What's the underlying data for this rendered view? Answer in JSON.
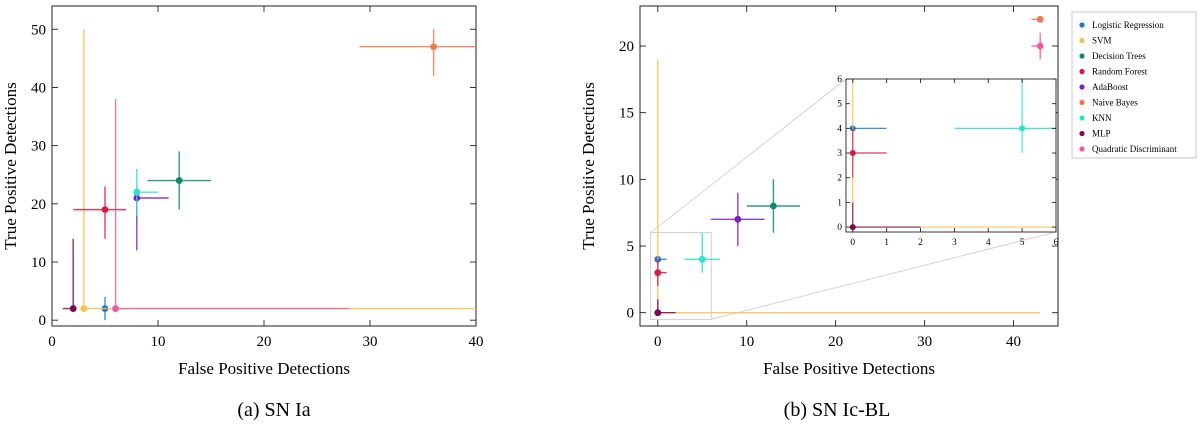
{
  "colors": {
    "Logistic Regression": "#1f77d4",
    "SVM": "#f7c14a",
    "Decision Trees": "#0c8a6e",
    "Random Forest": "#d81b45",
    "AdaBoost": "#7b1fc2",
    "Naive Bayes": "#f0784a",
    "KNN": "#27e3cf",
    "MLP": "#7a0a55",
    "Quadratic Discriminant": "#f25aa0"
  },
  "legend": {
    "entries": [
      "Logistic Regression",
      "SVM",
      "Decision Trees",
      "Random Forest",
      "AdaBoost",
      "Naive Bayes",
      "KNN",
      "MLP",
      "Quadratic Discriminant"
    ]
  },
  "chart_data": [
    {
      "type": "scatter",
      "panel_caption": "(a) SN Ia",
      "xlabel": "False Positive Detections",
      "ylabel": "True Positive Detections",
      "xlim": [
        0,
        40
      ],
      "ylim": [
        -1,
        54
      ],
      "xticks": [
        0,
        10,
        20,
        30,
        40
      ],
      "yticks": [
        0,
        10,
        20,
        30,
        40,
        50
      ],
      "series": [
        {
          "name": "Logistic Regression",
          "x": 5,
          "y": 2,
          "xerr": [
            0,
            0
          ],
          "yerr": [
            2,
            2
          ]
        },
        {
          "name": "SVM",
          "x": 3,
          "y": 2,
          "xerr": [
            0,
            37
          ],
          "yerr": [
            0,
            48
          ]
        },
        {
          "name": "Decision Trees",
          "x": 12,
          "y": 24,
          "xerr": [
            3,
            3
          ],
          "yerr": [
            5,
            5
          ]
        },
        {
          "name": "Random Forest",
          "x": 5,
          "y": 19,
          "xerr": [
            3,
            2
          ],
          "yerr": [
            5,
            4
          ]
        },
        {
          "name": "AdaBoost",
          "x": 8,
          "y": 21,
          "xerr": [
            0,
            3
          ],
          "yerr": [
            9,
            0
          ]
        },
        {
          "name": "Naive Bayes",
          "x": 36,
          "y": 47,
          "xerr": [
            7,
            4
          ],
          "yerr": [
            5,
            3
          ]
        },
        {
          "name": "KNN",
          "x": 8,
          "y": 22,
          "xerr": [
            0,
            2
          ],
          "yerr": [
            4,
            4
          ]
        },
        {
          "name": "MLP",
          "x": 2,
          "y": 2,
          "xerr": [
            1,
            0
          ],
          "yerr": [
            0,
            12
          ]
        },
        {
          "name": "Quadratic Discriminant",
          "x": 6,
          "y": 2,
          "xerr": [
            0,
            22
          ],
          "yerr": [
            0,
            36
          ]
        }
      ]
    },
    {
      "type": "scatter",
      "panel_caption": "(b) SN Ic-BL",
      "xlabel": "False Positive Detections",
      "ylabel": "True Positive Detections",
      "xlim": [
        -2,
        45
      ],
      "ylim": [
        -1,
        23
      ],
      "xticks": [
        0,
        10,
        20,
        30,
        40
      ],
      "yticks": [
        0,
        5,
        10,
        15,
        20
      ],
      "series": [
        {
          "name": "Logistic Regression",
          "x": 0,
          "y": 4,
          "xerr": [
            0,
            1
          ],
          "yerr": [
            0,
            0
          ]
        },
        {
          "name": "SVM",
          "x": 0,
          "y": 0,
          "xerr": [
            0,
            43
          ],
          "yerr": [
            0,
            19
          ]
        },
        {
          "name": "Decision Trees",
          "x": 13,
          "y": 8,
          "xerr": [
            3,
            3
          ],
          "yerr": [
            2,
            2
          ]
        },
        {
          "name": "Random Forest",
          "x": 0,
          "y": 3,
          "xerr": [
            0,
            1
          ],
          "yerr": [
            1,
            1
          ]
        },
        {
          "name": "AdaBoost",
          "x": 9,
          "y": 7,
          "xerr": [
            3,
            3
          ],
          "yerr": [
            2,
            2
          ]
        },
        {
          "name": "Naive Bayes",
          "x": 43,
          "y": 22,
          "xerr": [
            1,
            0
          ],
          "yerr": [
            0,
            0
          ]
        },
        {
          "name": "KNN",
          "x": 5,
          "y": 4,
          "xerr": [
            2,
            2
          ],
          "yerr": [
            1,
            2
          ]
        },
        {
          "name": "MLP",
          "x": 0,
          "y": 0,
          "xerr": [
            0,
            2
          ],
          "yerr": [
            0,
            1
          ]
        },
        {
          "name": "Quadratic Discriminant",
          "x": 43,
          "y": 20,
          "xerr": [
            1,
            0
          ],
          "yerr": [
            1,
            1
          ]
        }
      ],
      "inset": {
        "xlim": [
          -0.2,
          6
        ],
        "ylim": [
          -0.2,
          6
        ],
        "xticks": [
          0,
          1,
          2,
          3,
          4,
          5,
          6
        ],
        "yticks": [
          0,
          1,
          2,
          3,
          4,
          5,
          6
        ],
        "zoom_region": {
          "x": [
            -0.8,
            6
          ],
          "y": [
            -0.5,
            6
          ]
        }
      }
    }
  ]
}
